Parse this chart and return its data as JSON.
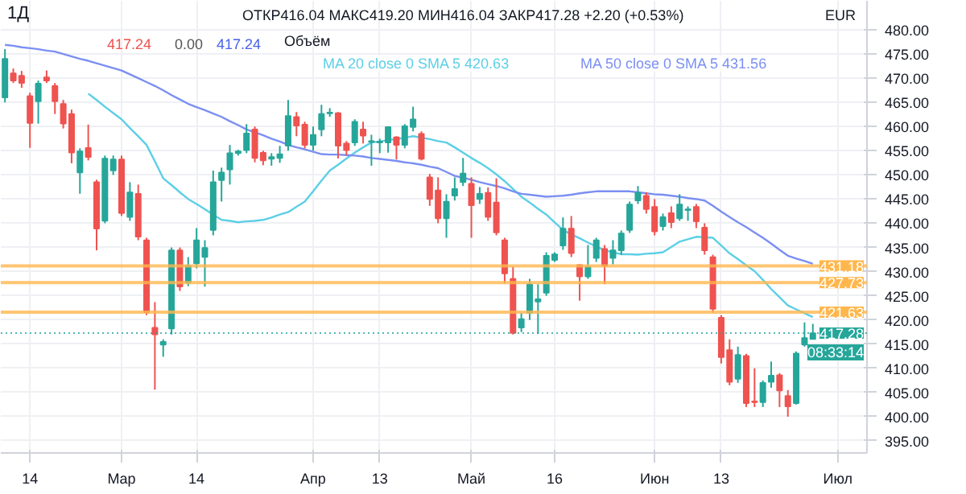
{
  "chart_data": {
    "type": "candlestick",
    "title": "1Д",
    "annotations": [
      "ОТКР416.04 МАКС419.20 МИН416.04 ЗАКР417.28 +2.20 (+0.53%)",
      "417.24",
      "0.00",
      "417.24",
      "Объём",
      "EUR",
      "08:33:14"
    ],
    "categories": [
      null,
      null,
      null,
      "14",
      null,
      null,
      null,
      null,
      null,
      null,
      null,
      null,
      null,
      null,
      "Мар",
      null,
      null,
      null,
      null,
      null,
      null,
      null,
      null,
      "14",
      null,
      null,
      null,
      null,
      null,
      null,
      null,
      null,
      null,
      null,
      null,
      null,
      null,
      "Апр",
      null,
      null,
      null,
      null,
      null,
      null,
      null,
      "13",
      null,
      null,
      null,
      null,
      null,
      null,
      null,
      null,
      null,
      null,
      "Май",
      null,
      null,
      null,
      null,
      null,
      null,
      null,
      null,
      null,
      "16",
      null,
      null,
      null,
      null,
      null,
      null,
      null,
      null,
      null,
      null,
      null,
      "Июн",
      null,
      null,
      null,
      null,
      null,
      null,
      null,
      "13",
      null,
      null,
      null,
      null,
      null,
      null,
      null,
      null,
      null,
      null,
      null,
      null,
      null,
      "Июл",
      null,
      null,
      null
    ],
    "ohlc": [
      [
        466,
        476,
        465,
        474
      ],
      [
        471,
        472,
        469,
        469.5
      ],
      [
        470.5,
        471.5,
        468,
        469
      ],
      [
        466.3,
        467,
        455.6,
        460.7
      ],
      [
        465.2,
        469.5,
        460.6,
        468.9
      ],
      [
        470.2,
        471.6,
        469,
        469.5
      ],
      [
        468.4,
        469,
        462.6,
        465.2
      ],
      [
        464.7,
        465.5,
        459.6,
        460.6
      ],
      [
        462.6,
        463.5,
        452.4,
        454.6
      ],
      [
        450.5,
        455.5,
        446.1,
        454.9
      ],
      [
        455.6,
        460.4,
        453,
        453.7
      ],
      [
        448.5,
        449,
        434.4,
        438.9
      ],
      [
        440.5,
        454,
        440,
        453.4
      ],
      [
        450.9,
        454,
        450,
        453.2
      ],
      [
        453.2,
        454,
        441.5,
        442.1
      ],
      [
        441.3,
        448.5,
        440.5,
        446.4
      ],
      [
        446.1,
        448,
        436.5,
        437.2
      ],
      [
        436.5,
        437,
        421,
        421.6
      ],
      [
        418.4,
        423.7,
        405.6,
        417
      ],
      [
        414.9,
        416,
        412.4,
        415.5
      ],
      [
        418.2,
        435,
        417,
        434.4
      ],
      [
        434.4,
        435,
        426,
        426.9
      ],
      [
        427.7,
        433,
        427,
        431.2
      ],
      [
        431.7,
        439,
        430.7,
        436.5
      ],
      [
        433,
        436.5,
        426.9,
        434.9
      ],
      [
        438.6,
        450.9,
        437.5,
        448.5
      ],
      [
        448.9,
        451.5,
        444.5,
        450.5
      ],
      [
        451.1,
        456.2,
        448,
        454.5
      ],
      [
        454.5,
        455.2,
        454,
        454.9
      ],
      [
        455.1,
        460.5,
        454.5,
        458.6
      ],
      [
        459.4,
        460,
        452.6,
        453.5
      ],
      [
        454.6,
        455,
        452,
        453
      ],
      [
        453.3,
        454.5,
        451.9,
        453.7
      ],
      [
        453.5,
        456,
        452.5,
        454.3
      ],
      [
        456,
        465.5,
        455,
        462.2
      ],
      [
        462,
        463,
        458,
        460.2
      ],
      [
        460.4,
        461,
        455.5,
        456.2
      ],
      [
        456.2,
        460,
        455,
        458.3
      ],
      [
        459.4,
        464.5,
        458,
        462.6
      ],
      [
        462.7,
        463.8,
        462,
        462.9
      ],
      [
        462.8,
        463,
        453.4,
        456
      ],
      [
        456.5,
        457,
        454,
        455.1
      ],
      [
        456.7,
        461.5,
        456,
        461
      ],
      [
        459.4,
        461,
        456.5,
        458.1
      ],
      [
        456.8,
        458.3,
        451.9,
        457
      ],
      [
        456.7,
        457.5,
        454.5,
        456.9
      ],
      [
        456.7,
        460,
        454.6,
        459.9
      ],
      [
        457.8,
        458,
        453.2,
        456.2
      ],
      [
        456.2,
        460.5,
        455.5,
        460.1
      ],
      [
        459.9,
        464.1,
        459,
        461.5
      ],
      [
        458.5,
        459,
        453,
        453.3
      ],
      [
        449.5,
        450.2,
        443.6,
        445
      ],
      [
        446.8,
        449.5,
        440,
        441
      ],
      [
        441,
        446,
        437,
        444.5
      ],
      [
        445.7,
        449.5,
        444.7,
        447.1
      ],
      [
        448.5,
        453.5,
        447.7,
        450.3
      ],
      [
        448.2,
        449.5,
        437,
        443.7
      ],
      [
        445,
        447.5,
        444,
        446.1
      ],
      [
        446.3,
        447.4,
        440.5,
        441.3
      ],
      [
        444.3,
        449.3,
        437.5,
        438.1
      ],
      [
        436.5,
        437,
        427.5,
        429.6
      ],
      [
        428.5,
        431,
        417,
        417.3
      ],
      [
        418.4,
        421.5,
        417.5,
        420.2
      ],
      [
        421.4,
        428.5,
        420,
        427.4
      ],
      [
        423.8,
        427.4,
        417.1,
        424.3
      ],
      [
        425.6,
        434,
        425,
        433.3
      ],
      [
        432.4,
        434,
        432,
        433.6
      ],
      [
        435.4,
        441.2,
        434.5,
        438.9
      ],
      [
        438.9,
        441.5,
        433,
        433.8
      ],
      [
        431.4,
        431.5,
        424,
        429
      ],
      [
        429,
        435.5,
        428.5,
        431
      ],
      [
        432.8,
        437,
        432,
        436.5
      ],
      [
        434.7,
        435.5,
        427.4,
        431.2
      ],
      [
        432.8,
        436.5,
        431.5,
        434.4
      ],
      [
        434.4,
        438.5,
        433.5,
        437.9
      ],
      [
        438.6,
        444.5,
        438,
        443.9
      ],
      [
        444.7,
        447.7,
        444,
        446.3
      ],
      [
        445.7,
        446.4,
        442,
        442.9
      ],
      [
        443.4,
        445,
        437.5,
        438.3
      ],
      [
        439.4,
        442,
        438.5,
        441.3
      ],
      [
        442.1,
        443.5,
        439,
        440.2
      ],
      [
        441,
        446,
        440.5,
        443.9
      ],
      [
        442.7,
        443.5,
        440.5,
        442.9
      ],
      [
        443.4,
        444,
        439,
        440.4
      ],
      [
        439.1,
        440,
        433.5,
        434.4
      ],
      [
        433,
        433.5,
        421.5,
        422.3
      ],
      [
        420.5,
        421,
        411,
        412.3
      ],
      [
        413.8,
        416,
        406.5,
        407.2
      ],
      [
        407.8,
        414.5,
        407,
        412.8
      ],
      [
        412.6,
        413,
        402,
        402.8
      ],
      [
        403.2,
        410,
        402,
        403
      ],
      [
        403,
        407.5,
        402,
        407
      ],
      [
        407.2,
        411.4,
        406,
        408.5
      ],
      [
        408.6,
        409,
        402,
        405.4
      ],
      [
        404.3,
        405.5,
        400,
        402.1
      ],
      [
        402.8,
        413.5,
        402.5,
        413.1
      ],
      [
        414.9,
        419.5,
        414.5,
        416.3
      ],
      [
        416.04,
        419.2,
        416.04,
        417.28
      ],
      null,
      null,
      null,
      null,
      null,
      null
    ],
    "colors": [
      "#26a69a",
      "#ef5350",
      "#ef5350",
      "#ef5350",
      "#26a69a",
      "#ef5350",
      "#ef5350",
      "#ef5350",
      "#ef5350",
      "#26a69a",
      "#ef5350",
      "#ef5350",
      "#26a69a",
      "#26a69a",
      "#ef5350",
      "#26a69a",
      "#ef5350",
      "#ef5350",
      "#ef5350",
      "#26a69a",
      "#26a69a",
      "#ef5350",
      "#26a69a",
      "#26a69a",
      "#26a69a",
      "#26a69a",
      "#26a69a",
      "#26a69a",
      "#26a69a",
      "#26a69a",
      "#ef5350",
      "#ef5350",
      "#26a69a",
      "#26a69a",
      "#26a69a",
      "#ef5350",
      "#ef5350",
      "#26a69a",
      "#26a69a",
      "#26a69a",
      "#ef5350",
      "#ef5350",
      "#26a69a",
      "#ef5350",
      "#26a69a",
      "#26a69a",
      "#26a69a",
      "#ef5350",
      "#26a69a",
      "#26a69a",
      "#ef5350",
      "#ef5350",
      "#ef5350",
      "#26a69a",
      "#26a69a",
      "#26a69a",
      "#ef5350",
      "#26a69a",
      "#ef5350",
      "#ef5350",
      "#ef5350",
      "#ef5350",
      "#26a69a",
      "#26a69a",
      "#26a69a",
      "#26a69a",
      "#26a69a",
      "#26a69a",
      "#ef5350",
      "#ef5350",
      "#26a69a",
      "#26a69a",
      "#ef5350",
      "#26a69a",
      "#26a69a",
      "#26a69a",
      "#26a69a",
      "#ef5350",
      "#ef5350",
      "#26a69a",
      "#ef5350",
      "#26a69a",
      "#26a69a",
      "#ef5350",
      "#ef5350",
      "#ef5350",
      "#ef5350",
      "#ef5350",
      "#26a69a",
      "#ef5350",
      "#ef5350",
      "#26a69a",
      "#26a69a",
      "#ef5350",
      "#ef5350",
      "#26a69a",
      "#26a69a",
      "#26a69a",
      null,
      null,
      null,
      null,
      null,
      null
    ],
    "series": [
      {
        "name": "MA 20 close 0 SMA 5 420.63",
        "type": "line",
        "color": "#5ccfe6",
        "values": [
          null,
          null,
          null,
          null,
          null,
          null,
          null,
          null,
          null,
          null,
          466.8,
          465.5,
          464.1,
          462.8,
          461.5,
          459.7,
          458.0,
          456.2,
          452.8,
          449.3,
          447.9,
          446.4,
          445.0,
          444.0,
          442.9,
          441.8,
          440.7,
          440.5,
          440.2,
          440.4,
          440.5,
          440.7,
          441.2,
          441.8,
          442.3,
          443.4,
          444.5,
          446.6,
          448.8,
          450.9,
          452.1,
          453.4,
          454.6,
          455.7,
          456.7,
          456.9,
          457.2,
          457.4,
          457.7,
          458.0,
          457.7,
          457.4,
          457.0,
          456.7,
          455.7,
          454.6,
          453.5,
          452.5,
          451.4,
          450.1,
          448.7,
          447.1,
          445.5,
          444.3,
          443.0,
          441.8,
          440.2,
          438.6,
          437.7,
          436.9,
          436.0,
          435.2,
          434.4,
          434.0,
          433.6,
          433.6,
          433.5,
          433.7,
          433.8,
          434.0,
          435.1,
          436.2,
          436.7,
          437.2,
          437.1,
          437.0,
          435.4,
          433.8,
          432.6,
          431.3,
          430.1,
          428.3,
          426.4,
          424.7,
          423.0,
          422.2,
          421.4,
          420.6,
          null,
          null,
          null,
          null,
          null,
          null
        ]
      },
      {
        "name": "MA 50 close 0 SMA 5 431.56",
        "type": "line",
        "color": "#7b8ff2",
        "values": [
          476.9,
          476.7,
          476.4,
          476.2,
          476.0,
          475.7,
          475.5,
          475.0,
          474.5,
          474.0,
          473.6,
          473.1,
          472.6,
          472.1,
          471.6,
          470.8,
          470.0,
          469.2,
          468.4,
          467.5,
          466.5,
          465.6,
          464.7,
          464.0,
          463.4,
          462.7,
          462.0,
          461.1,
          460.3,
          459.4,
          458.8,
          458.2,
          457.5,
          456.9,
          456.2,
          455.7,
          455.3,
          454.8,
          454.3,
          454.2,
          454.2,
          454.1,
          454.0,
          453.8,
          453.5,
          453.3,
          453.1,
          452.9,
          452.6,
          452.4,
          452.1,
          451.7,
          451.4,
          450.6,
          449.8,
          449.4,
          449.0,
          448.5,
          448.1,
          447.7,
          447.2,
          446.6,
          446.1,
          445.9,
          445.7,
          445.5,
          445.6,
          445.7,
          445.9,
          446.2,
          446.4,
          446.6,
          446.6,
          446.6,
          446.6,
          446.6,
          446.4,
          446.2,
          446.0,
          445.9,
          445.7,
          445.5,
          445.2,
          445.0,
          444.7,
          443.6,
          442.4,
          441.3,
          440.2,
          439.2,
          438.1,
          437.0,
          435.8,
          434.5,
          433.3,
          432.7,
          432.2,
          431.6,
          null,
          null,
          null,
          null,
          null,
          null
        ]
      }
    ],
    "ref_lines": [
      {
        "axis": "y",
        "value": 431.18,
        "label": "431.18",
        "color": "#ffb74d",
        "line_style": "solid"
      },
      {
        "axis": "y",
        "value": 427.73,
        "label": "427.73",
        "color": "#ffb74d",
        "line_style": "solid"
      },
      {
        "axis": "y",
        "value": 421.63,
        "label": "421.63",
        "color": "#ffb74d",
        "line_style": "solid"
      },
      {
        "axis": "y",
        "value": 417.28,
        "label": "417.28",
        "color": "#26a69a",
        "line_style": "dotted"
      }
    ],
    "ylim": [
      392.5,
      486
    ],
    "yticks": [
      {
        "value": 395,
        "label": "395.00"
      },
      {
        "value": 400,
        "label": "400.00"
      },
      {
        "value": 405,
        "label": "405.00"
      },
      {
        "value": 410,
        "label": "410.00"
      },
      {
        "value": 415,
        "label": "415.00"
      },
      {
        "value": 420,
        "label": "420.00"
      },
      {
        "value": 425,
        "label": "425.00"
      },
      {
        "value": 430,
        "label": "430.00"
      },
      {
        "value": 435,
        "label": "435.00"
      },
      {
        "value": 440,
        "label": "440.00"
      },
      {
        "value": 445,
        "label": "445.00"
      },
      {
        "value": 450,
        "label": "450.00"
      },
      {
        "value": 455,
        "label": "455.00"
      },
      {
        "value": 460,
        "label": "460.00"
      },
      {
        "value": 465,
        "label": "465.00"
      },
      {
        "value": 470,
        "label": "470.00"
      },
      {
        "value": 475,
        "label": "475.00"
      },
      {
        "value": 480,
        "label": "480.00"
      }
    ],
    "grid": true,
    "legend": "top"
  }
}
